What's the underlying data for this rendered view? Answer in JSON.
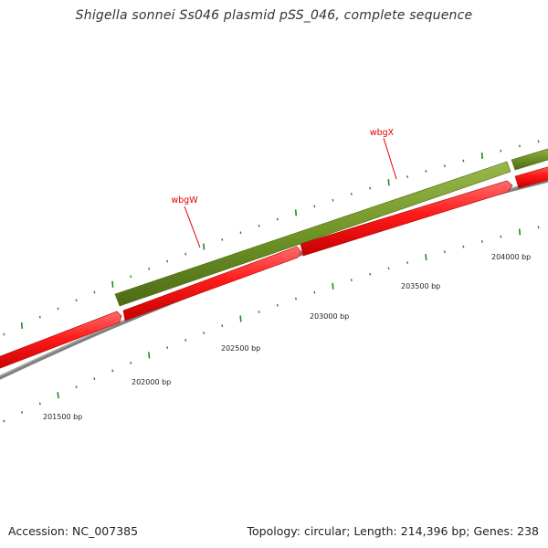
{
  "title": "Shigella sonnei Ss046 plasmid pSS_046, complete sequence",
  "footer": {
    "accession": "Accession: NC_007385",
    "summary": "Topology: circular; Length: 214,396 bp; Genes: 238"
  },
  "genes": [
    {
      "name": "wbgW"
    },
    {
      "name": "wbgX"
    }
  ],
  "scale_labels": [
    "201500 bp",
    "202000 bp",
    "202500 bp",
    "203000 bp",
    "203500 bp",
    "204000 bp"
  ],
  "colors": {
    "forward_feature": "#6b8e23",
    "reverse_feature": "#ff0000",
    "backbone": "#808080",
    "tick": "#1e8c1e",
    "gene_label": "#e00000"
  }
}
